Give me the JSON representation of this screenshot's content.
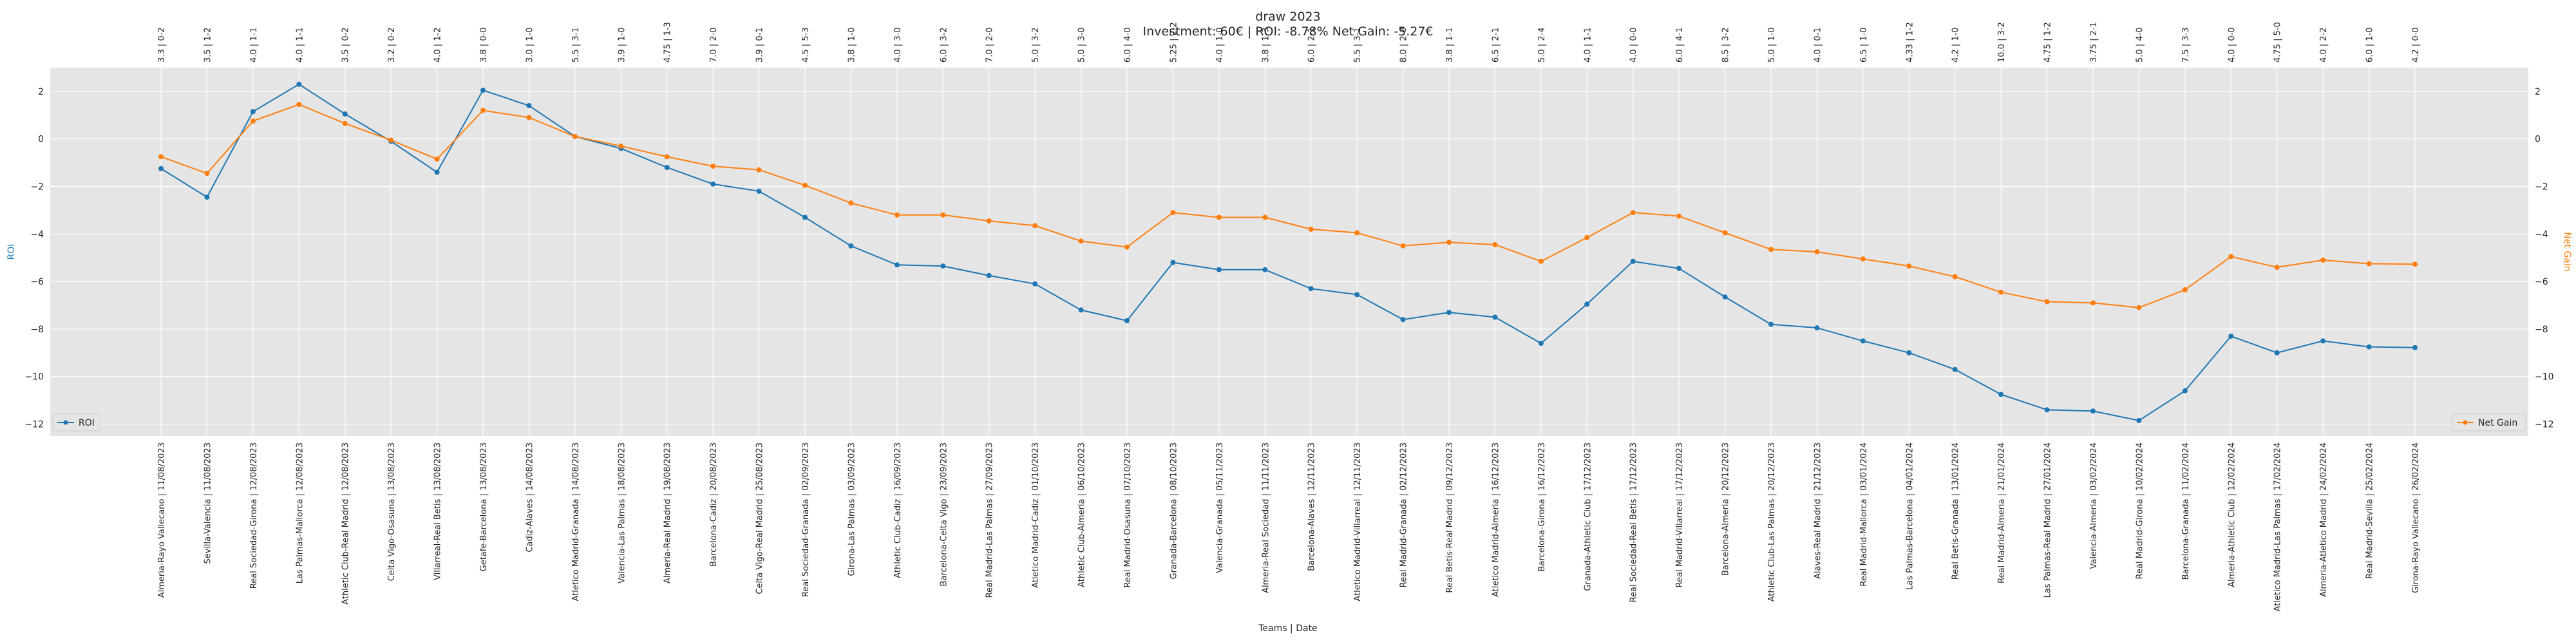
{
  "chart_data": {
    "type": "line",
    "title": "draw 2023",
    "subtitle": "Investment: 60€ | ROI: -8.78% Net Gain: -5.27€",
    "xlabel": "Teams | Date",
    "ylabel_left": "ROI",
    "ylabel_right": "Net Gain",
    "ylim": [
      -12.5,
      3
    ],
    "yticks": [
      2,
      0,
      -2,
      -4,
      -6,
      -8,
      -10,
      -12
    ],
    "grid": true,
    "legend_left": "bottom-left",
    "legend_right": "bottom-right",
    "categories": [
      "Almeria-Rayo Vallecano | 11/08/2023",
      "Sevilla-Valencia | 11/08/2023",
      "Real Sociedad-Girona | 12/08/2023",
      "Las Palmas-Mallorca | 12/08/2023",
      "Athletic Club-Real Madrid | 12/08/2023",
      "Celta Vigo-Osasuna | 13/08/2023",
      "Villarreal-Real Betis | 13/08/2023",
      "Getafe-Barcelona | 13/08/2023",
      "Cadiz-Alaves | 14/08/2023",
      "Atletico Madrid-Granada | 14/08/2023",
      "Valencia-Las Palmas | 18/08/2023",
      "Almeria-Real Madrid | 19/08/2023",
      "Barcelona-Cadiz | 20/08/2023",
      "Celta Vigo-Real Madrid | 25/08/2023",
      "Real Sociedad-Granada | 02/09/2023",
      "Girona-Las Palmas | 03/09/2023",
      "Athletic Club-Cadiz | 16/09/2023",
      "Barcelona-Celta Vigo | 23/09/2023",
      "Real Madrid-Las Palmas | 27/09/2023",
      "Atletico Madrid-Cadiz | 01/10/2023",
      "Athletic Club-Almeria | 06/10/2023",
      "Real Madrid-Osasuna | 07/10/2023",
      "Granada-Barcelona | 08/10/2023",
      "Valencia-Granada | 05/11/2023",
      "Almeria-Real Sociedad | 11/11/2023",
      "Barcelona-Alaves | 12/11/2023",
      "Atletico Madrid-Villarreal | 12/11/2023",
      "Real Madrid-Granada | 02/12/2023",
      "Real Betis-Real Madrid | 09/12/2023",
      "Atletico Madrid-Almeria | 16/12/2023",
      "Barcelona-Girona | 16/12/2023",
      "Granada-Athletic Club | 17/12/2023",
      "Real Sociedad-Real Betis | 17/12/2023",
      "Real Madrid-Villarreal | 17/12/2023",
      "Barcelona-Almeria | 20/12/2023",
      "Athletic Club-Las Palmas | 20/12/2023",
      "Alaves-Real Madrid | 21/12/2023",
      "Real Madrid-Mallorca | 03/01/2024",
      "Las Palmas-Barcelona | 04/01/2024",
      "Real Betis-Granada | 13/01/2024",
      "Real Madrid-Almeria | 21/01/2024",
      "Las Palmas-Real Madrid | 27/01/2024",
      "Valencia-Almeria | 03/02/2024",
      "Real Madrid-Girona | 10/02/2024",
      "Barcelona-Granada | 11/02/2024",
      "Almeria-Athletic Club | 12/02/2024",
      "Atletico Madrid-Las Palmas | 17/02/2024",
      "Almeria-Atletico Madrid | 24/02/2024",
      "Real Madrid-Sevilla | 25/02/2024",
      "Girona-Rayo Vallecano | 26/02/2024"
    ],
    "odds_labels": [
      "3.3 | 0-2",
      "3.5 | 1-2",
      "4.0 | 1-1",
      "4.0 | 1-1",
      "3.5 | 0-2",
      "3.2 | 0-2",
      "4.0 | 1-2",
      "3.8 | 0-0",
      "3.0 | 1-0",
      "5.5 | 3-1",
      "3.9 | 1-0",
      "4.75 | 1-3",
      "7.0 | 2-0",
      "3.9 | 0-1",
      "4.5 | 5-3",
      "3.8 | 1-0",
      "4.0 | 3-0",
      "6.0 | 3-2",
      "7.0 | 2-0",
      "5.0 | 3-2",
      "5.0 | 3-0",
      "6.0 | 4-0",
      "5.25 | 2-2",
      "4.0 | 1-0",
      "3.8 | 1-3",
      "6.0 | 2-1",
      "5.5 | 3-1",
      "8.0 | 2-0",
      "3.8 | 1-1",
      "6.5 | 2-1",
      "5.0 | 2-4",
      "4.0 | 1-1",
      "4.0 | 0-0",
      "6.0 | 4-1",
      "8.5 | 3-2",
      "5.0 | 1-0",
      "4.0 | 0-1",
      "6.5 | 1-0",
      "4.33 | 1-2",
      "4.2 | 1-0",
      "10.0 | 3-2",
      "4.75 | 1-2",
      "3.75 | 2-1",
      "5.0 | 4-0",
      "7.5 | 3-3",
      "4.0 | 0-0",
      "4.75 | 5-0",
      "4.0 | 2-2",
      "6.0 | 1-0",
      "4.2 | 0-0"
    ],
    "series": [
      {
        "name": "ROI",
        "color": "#1f77b4",
        "axis": "left",
        "values": [
          -1.25,
          -2.45,
          1.15,
          2.3,
          1.05,
          -0.1,
          -1.4,
          2.05,
          1.4,
          0.1,
          -0.4,
          -1.2,
          -1.9,
          -2.2,
          -3.3,
          -4.5,
          -5.3,
          -5.35,
          -5.75,
          -6.1,
          -7.2,
          -7.65,
          -5.2,
          -5.5,
          -5.5,
          -6.3,
          -6.55,
          -7.6,
          -7.3,
          -7.5,
          -8.6,
          -6.95,
          -5.15,
          -5.45,
          -6.65,
          -7.8,
          -7.95,
          -8.5,
          -9.0,
          -9.7,
          -10.75,
          -11.4,
          -11.45,
          -11.85,
          -10.6,
          -8.3,
          -9.0,
          -8.5,
          -8.75,
          -8.78
        ]
      },
      {
        "name": "Net Gain",
        "color": "#ff7f0e",
        "axis": "right",
        "values": [
          -0.75,
          -1.45,
          0.75,
          1.45,
          0.65,
          -0.05,
          -0.85,
          1.2,
          0.9,
          0.1,
          -0.3,
          -0.75,
          -1.15,
          -1.3,
          -1.95,
          -2.7,
          -3.2,
          -3.2,
          -3.45,
          -3.65,
          -4.3,
          -4.55,
          -3.1,
          -3.3,
          -3.3,
          -3.8,
          -3.95,
          -4.5,
          -4.35,
          -4.45,
          -5.15,
          -4.15,
          -3.1,
          -3.25,
          -3.95,
          -4.65,
          -4.75,
          -5.05,
          -5.35,
          -5.8,
          -6.45,
          -6.85,
          -6.9,
          -7.1,
          -6.35,
          -4.95,
          -5.4,
          -5.1,
          -5.25,
          -5.27
        ]
      }
    ]
  }
}
